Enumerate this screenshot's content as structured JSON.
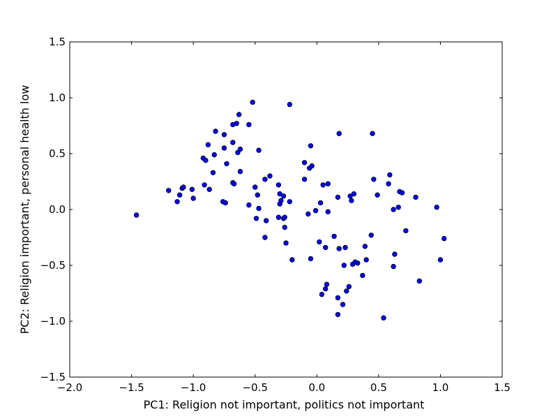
{
  "chart_data": {
    "type": "scatter",
    "xlabel": "PC1: Religion not important, politics not important",
    "ylabel": "PC2: Religion important, personal health low",
    "xlim": [
      -2.0,
      1.5
    ],
    "ylim": [
      -1.5,
      1.5
    ],
    "xticks": [
      -2.0,
      -1.5,
      -1.0,
      -0.5,
      0.0,
      0.5,
      1.0,
      1.5
    ],
    "yticks": [
      -1.5,
      -1.0,
      -0.5,
      0.0,
      0.5,
      1.0,
      1.5
    ],
    "xtick_labels": [
      "−2.0",
      "−1.5",
      "−1.0",
      "−0.5",
      "0.0",
      "0.5",
      "1.0",
      "1.5"
    ],
    "ytick_labels": [
      "−1.5",
      "−1.0",
      "−0.5",
      "0.0",
      "0.5",
      "1.0",
      "1.5"
    ],
    "grid": false,
    "marker_color": "#0000ff",
    "marker_edge_color": "#000000",
    "points": [
      {
        "x": -1.46,
        "y": -0.05
      },
      {
        "x": -1.2,
        "y": 0.17
      },
      {
        "x": -1.13,
        "y": 0.07
      },
      {
        "x": -1.11,
        "y": 0.13
      },
      {
        "x": -1.09,
        "y": 0.19
      },
      {
        "x": -1.08,
        "y": 0.2
      },
      {
        "x": -1.01,
        "y": 0.18
      },
      {
        "x": -1.0,
        "y": 0.1
      },
      {
        "x": -0.92,
        "y": 0.46
      },
      {
        "x": -0.91,
        "y": 0.22
      },
      {
        "x": -0.9,
        "y": 0.44
      },
      {
        "x": -0.88,
        "y": 0.58
      },
      {
        "x": -0.87,
        "y": 0.18
      },
      {
        "x": -0.84,
        "y": 0.33
      },
      {
        "x": -0.83,
        "y": 0.49
      },
      {
        "x": -0.82,
        "y": 0.7
      },
      {
        "x": -0.76,
        "y": 0.07
      },
      {
        "x": -0.75,
        "y": 0.67
      },
      {
        "x": -0.75,
        "y": 0.55
      },
      {
        "x": -0.74,
        "y": 0.06
      },
      {
        "x": -0.73,
        "y": 0.41
      },
      {
        "x": -0.68,
        "y": 0.24
      },
      {
        "x": -0.68,
        "y": 0.6
      },
      {
        "x": -0.68,
        "y": 0.76
      },
      {
        "x": -0.67,
        "y": 0.23
      },
      {
        "x": -0.65,
        "y": 0.77
      },
      {
        "x": -0.64,
        "y": 0.51
      },
      {
        "x": -0.63,
        "y": 0.85
      },
      {
        "x": -0.62,
        "y": 0.54
      },
      {
        "x": -0.62,
        "y": 0.34
      },
      {
        "x": -0.55,
        "y": 0.76
      },
      {
        "x": -0.55,
        "y": 0.04
      },
      {
        "x": -0.52,
        "y": 0.96
      },
      {
        "x": -0.5,
        "y": 0.2
      },
      {
        "x": -0.49,
        "y": -0.08
      },
      {
        "x": -0.48,
        "y": 0.13
      },
      {
        "x": -0.47,
        "y": 0.53
      },
      {
        "x": -0.47,
        "y": 0.01
      },
      {
        "x": -0.42,
        "y": 0.27
      },
      {
        "x": -0.42,
        "y": -0.25
      },
      {
        "x": -0.41,
        "y": -0.1
      },
      {
        "x": -0.38,
        "y": 0.3
      },
      {
        "x": -0.31,
        "y": -0.07
      },
      {
        "x": -0.31,
        "y": 0.22
      },
      {
        "x": -0.3,
        "y": 0.05
      },
      {
        "x": -0.3,
        "y": 0.14
      },
      {
        "x": -0.29,
        "y": 0.08
      },
      {
        "x": -0.27,
        "y": 0.12
      },
      {
        "x": -0.27,
        "y": -0.08
      },
      {
        "x": -0.26,
        "y": -0.07
      },
      {
        "x": -0.26,
        "y": -0.16
      },
      {
        "x": -0.25,
        "y": -0.3
      },
      {
        "x": -0.22,
        "y": 0.07
      },
      {
        "x": -0.22,
        "y": 0.94
      },
      {
        "x": -0.2,
        "y": -0.45
      },
      {
        "x": -0.1,
        "y": 0.27
      },
      {
        "x": -0.1,
        "y": 0.42
      },
      {
        "x": -0.07,
        "y": -0.04
      },
      {
        "x": -0.06,
        "y": 0.37
      },
      {
        "x": -0.05,
        "y": 0.57
      },
      {
        "x": -0.05,
        "y": -0.44
      },
      {
        "x": -0.04,
        "y": 0.39
      },
      {
        "x": -0.01,
        "y": -0.01
      },
      {
        "x": 0.02,
        "y": -0.29
      },
      {
        "x": 0.03,
        "y": 0.06
      },
      {
        "x": 0.04,
        "y": -0.76
      },
      {
        "x": 0.05,
        "y": 0.22
      },
      {
        "x": 0.07,
        "y": -0.71
      },
      {
        "x": 0.07,
        "y": -0.34
      },
      {
        "x": 0.08,
        "y": -0.67
      },
      {
        "x": 0.09,
        "y": -0.02
      },
      {
        "x": 0.09,
        "y": 0.23
      },
      {
        "x": 0.14,
        "y": -0.24
      },
      {
        "x": 0.17,
        "y": -0.94
      },
      {
        "x": 0.17,
        "y": 0.11
      },
      {
        "x": 0.17,
        "y": -0.79
      },
      {
        "x": 0.18,
        "y": 0.68
      },
      {
        "x": 0.18,
        "y": -0.35
      },
      {
        "x": 0.21,
        "y": -0.85
      },
      {
        "x": 0.22,
        "y": -0.5
      },
      {
        "x": 0.23,
        "y": -0.34
      },
      {
        "x": 0.24,
        "y": -0.73
      },
      {
        "x": 0.26,
        "y": -0.69
      },
      {
        "x": 0.27,
        "y": 0.12
      },
      {
        "x": 0.28,
        "y": 0.08
      },
      {
        "x": 0.29,
        "y": -0.49
      },
      {
        "x": 0.3,
        "y": 0.14
      },
      {
        "x": 0.31,
        "y": -0.47
      },
      {
        "x": 0.33,
        "y": -0.48
      },
      {
        "x": 0.37,
        "y": -0.59
      },
      {
        "x": 0.39,
        "y": -0.33
      },
      {
        "x": 0.4,
        "y": -0.45
      },
      {
        "x": 0.44,
        "y": -0.23
      },
      {
        "x": 0.45,
        "y": 0.68
      },
      {
        "x": 0.46,
        "y": 0.27
      },
      {
        "x": 0.49,
        "y": 0.13
      },
      {
        "x": 0.54,
        "y": -0.97
      },
      {
        "x": 0.58,
        "y": 0.23
      },
      {
        "x": 0.59,
        "y": 0.31
      },
      {
        "x": 0.62,
        "y": 0.0
      },
      {
        "x": 0.62,
        "y": -0.51
      },
      {
        "x": 0.63,
        "y": -0.4
      },
      {
        "x": 0.66,
        "y": 0.02
      },
      {
        "x": 0.67,
        "y": 0.16
      },
      {
        "x": 0.69,
        "y": 0.15
      },
      {
        "x": 0.72,
        "y": -0.19
      },
      {
        "x": 0.8,
        "y": 0.11
      },
      {
        "x": 0.83,
        "y": -0.64
      },
      {
        "x": 0.97,
        "y": 0.02
      },
      {
        "x": 1.0,
        "y": -0.45
      },
      {
        "x": 1.03,
        "y": -0.26
      }
    ]
  }
}
